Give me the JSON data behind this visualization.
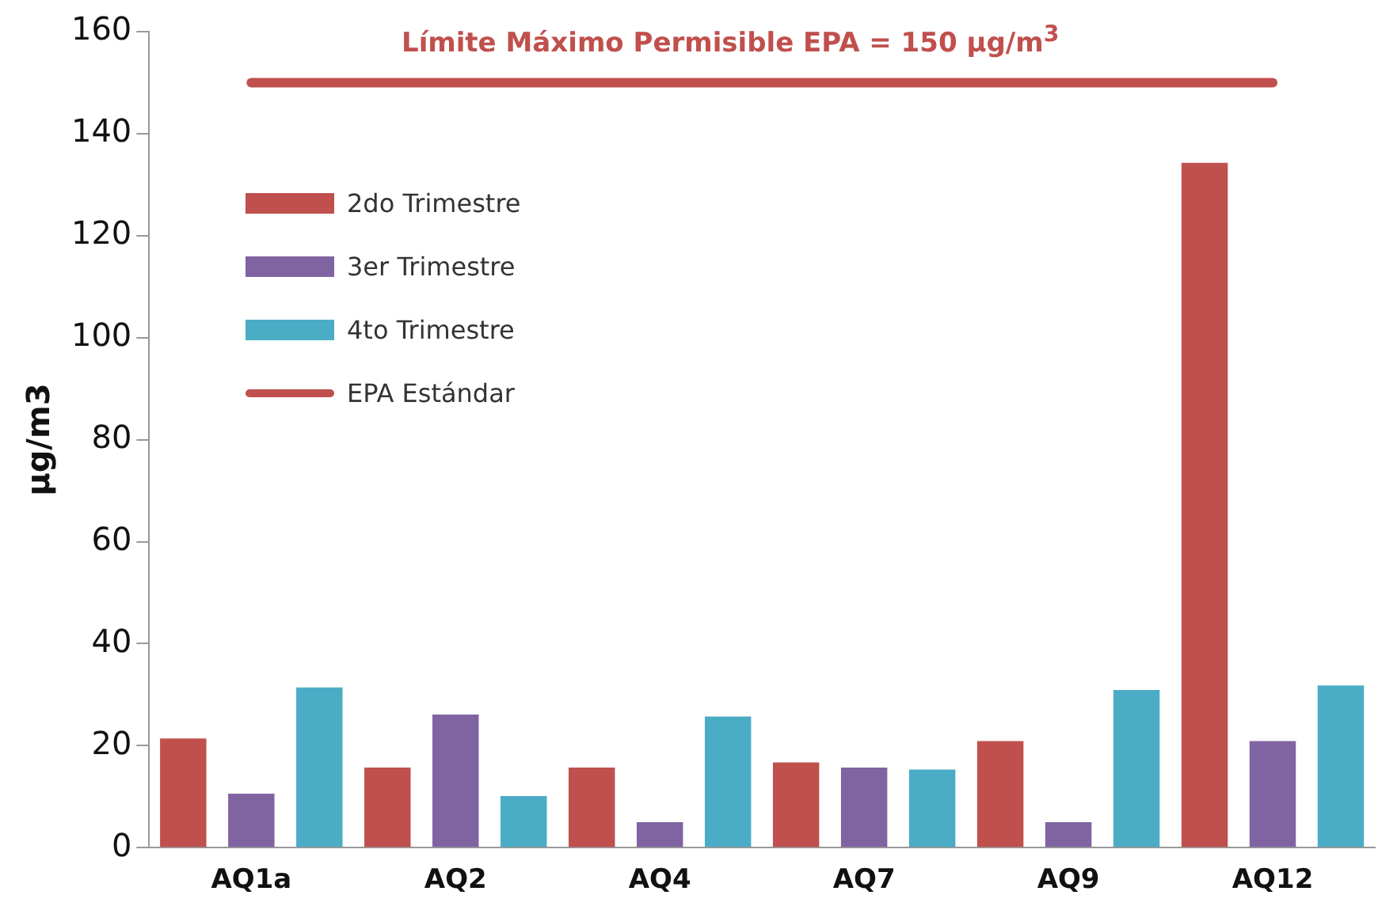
{
  "chart_data": {
    "type": "bar",
    "ylabel": "µg/m3",
    "categories": [
      "AQ1a",
      "AQ2",
      "AQ4",
      "AQ7",
      "AQ9",
      "AQ12"
    ],
    "series": [
      {
        "name": "2do Trimestre",
        "color": "#c0504d",
        "values": [
          21.4,
          15.7,
          15.7,
          16.7,
          20.9,
          134.3
        ]
      },
      {
        "name": "3er Trimestre",
        "color": "#8064a2",
        "values": [
          10.6,
          26.1,
          5.0,
          15.7,
          5.0,
          20.9
        ]
      },
      {
        "name": "4to Trimestre",
        "color": "#4bacc6",
        "values": [
          31.4,
          10.1,
          25.7,
          15.3,
          30.9,
          31.8
        ]
      },
      {
        "name": "EPA Estándar",
        "color": "#c0504d",
        "type": "line",
        "values": [
          150,
          150,
          150,
          150,
          150,
          150
        ]
      }
    ],
    "annotations": [
      {
        "text": "Límite Máximo Permisible EPA  = 150 µg/m$^{3}$",
        "y": 150
      }
    ],
    "ylim": [
      0,
      160
    ],
    "yticks": [
      0,
      20,
      40,
      60,
      80,
      100,
      120,
      140,
      160
    ],
    "grid": false,
    "legend": "top left",
    "marker": "none"
  }
}
